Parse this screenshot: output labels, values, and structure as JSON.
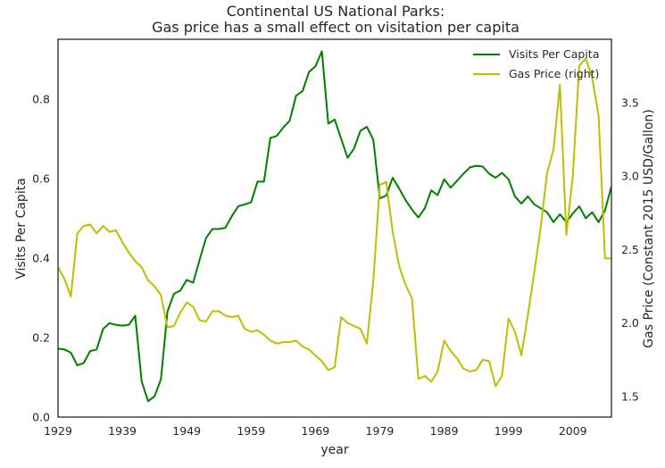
{
  "chart_data": {
    "type": "line",
    "title_line1": "Continental US National Parks:",
    "title_line2": "Gas price has a small effect on visitation per capita",
    "xlabel": "year",
    "ylabel_left": "Visits Per Capita",
    "ylabel_right": "Gas Price (Constant 2015 USD/Gallon)",
    "xlim": [
      1929,
      2015
    ],
    "ylim_left": [
      0.0,
      0.95
    ],
    "ylim_right": [
      1.36,
      3.93
    ],
    "x_ticks": [
      "1929",
      "1939",
      "1949",
      "1959",
      "1969",
      "1979",
      "1989",
      "1999",
      "2009"
    ],
    "x_tick_values": [
      1929,
      1939,
      1949,
      1959,
      1969,
      1979,
      1989,
      1999,
      2009
    ],
    "y_left_ticks": [
      "0.0",
      "0.2",
      "0.4",
      "0.6",
      "0.8"
    ],
    "y_left_tick_values": [
      0.0,
      0.2,
      0.4,
      0.6,
      0.8
    ],
    "y_right_ticks": [
      "1.5",
      "2.0",
      "2.5",
      "3.0",
      "3.5"
    ],
    "y_right_tick_values": [
      1.5,
      2.0,
      2.5,
      3.0,
      3.5
    ],
    "legend_position": "top-right",
    "grid": false,
    "series": [
      {
        "name": "Visits Per Capita",
        "axis": "left",
        "color": "#008000",
        "x": [
          1929,
          1930,
          1931,
          1932,
          1933,
          1934,
          1935,
          1936,
          1937,
          1938,
          1939,
          1940,
          1941,
          1942,
          1943,
          1944,
          1945,
          1946,
          1947,
          1948,
          1949,
          1950,
          1951,
          1952,
          1953,
          1954,
          1955,
          1956,
          1957,
          1958,
          1959,
          1960,
          1961,
          1962,
          1963,
          1964,
          1965,
          1966,
          1967,
          1968,
          1969,
          1970,
          1971,
          1972,
          1973,
          1974,
          1975,
          1976,
          1977,
          1978,
          1979,
          1980,
          1981,
          1982,
          1983,
          1984,
          1985,
          1986,
          1987,
          1988,
          1989,
          1990,
          1991,
          1992,
          1993,
          1994,
          1995,
          1996,
          1997,
          1998,
          1999,
          2000,
          2001,
          2002,
          2003,
          2004,
          2005,
          2006,
          2007,
          2008,
          2009,
          2010,
          2011,
          2012,
          2013,
          2014,
          2015
        ],
        "values": [
          0.172,
          0.17,
          0.162,
          0.13,
          0.136,
          0.166,
          0.17,
          0.222,
          0.236,
          0.232,
          0.23,
          0.232,
          0.255,
          0.09,
          0.04,
          0.052,
          0.095,
          0.265,
          0.31,
          0.318,
          0.345,
          0.338,
          0.395,
          0.45,
          0.473,
          0.473,
          0.476,
          0.505,
          0.53,
          0.535,
          0.54,
          0.592,
          0.592,
          0.702,
          0.707,
          0.728,
          0.745,
          0.808,
          0.82,
          0.868,
          0.882,
          0.92,
          0.738,
          0.748,
          0.7,
          0.652,
          0.675,
          0.72,
          0.73,
          0.697,
          0.55,
          0.557,
          0.602,
          0.575,
          0.546,
          0.522,
          0.502,
          0.525,
          0.57,
          0.558,
          0.598,
          0.577,
          0.594,
          0.612,
          0.628,
          0.632,
          0.63,
          0.612,
          0.602,
          0.614,
          0.598,
          0.555,
          0.537,
          0.555,
          0.535,
          0.525,
          0.515,
          0.49,
          0.51,
          0.49,
          0.512,
          0.53,
          0.5,
          0.515,
          0.49,
          0.52,
          0.58
        ]
      },
      {
        "name": "Gas Price (right)",
        "axis": "right",
        "color": "#BFBF00",
        "x": [
          1929,
          1930,
          1931,
          1932,
          1933,
          1934,
          1935,
          1936,
          1937,
          1938,
          1939,
          1940,
          1941,
          1942,
          1943,
          1944,
          1945,
          1946,
          1947,
          1948,
          1949,
          1950,
          1951,
          1952,
          1953,
          1954,
          1955,
          1956,
          1957,
          1958,
          1959,
          1960,
          1961,
          1962,
          1963,
          1964,
          1965,
          1966,
          1967,
          1968,
          1969,
          1970,
          1971,
          1972,
          1973,
          1974,
          1975,
          1976,
          1977,
          1978,
          1979,
          1980,
          1981,
          1982,
          1983,
          1984,
          1985,
          1986,
          1987,
          1988,
          1989,
          1990,
          1991,
          1992,
          1993,
          1994,
          1995,
          1996,
          1997,
          1998,
          1999,
          2000,
          2001,
          2002,
          2003,
          2004,
          2005,
          2006,
          2007,
          2008,
          2009,
          2010,
          2011,
          2012,
          2013,
          2014,
          2015
        ],
        "values": [
          2.38,
          2.3,
          2.18,
          2.61,
          2.66,
          2.67,
          2.61,
          2.66,
          2.62,
          2.63,
          2.55,
          2.48,
          2.42,
          2.38,
          2.29,
          2.25,
          2.19,
          1.97,
          1.98,
          2.07,
          2.14,
          2.11,
          2.02,
          2.01,
          2.08,
          2.08,
          2.05,
          2.04,
          2.05,
          1.96,
          1.94,
          1.95,
          1.92,
          1.88,
          1.86,
          1.87,
          1.87,
          1.88,
          1.84,
          1.82,
          1.78,
          1.74,
          1.68,
          1.7,
          2.04,
          2.0,
          1.98,
          1.96,
          1.86,
          2.29,
          2.94,
          2.96,
          2.62,
          2.39,
          2.26,
          2.17,
          1.62,
          1.64,
          1.6,
          1.67,
          1.88,
          1.81,
          1.76,
          1.69,
          1.67,
          1.68,
          1.75,
          1.74,
          1.57,
          1.64,
          2.03,
          1.94,
          1.78,
          2.05,
          2.34,
          2.65,
          3.02,
          3.18,
          3.62,
          2.6,
          3.0,
          3.75,
          3.8,
          3.67,
          3.41,
          2.44,
          2.44
        ]
      }
    ]
  }
}
